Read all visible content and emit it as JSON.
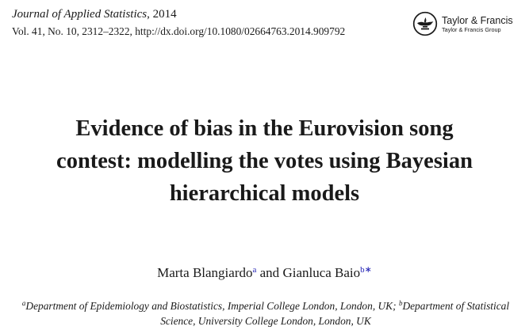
{
  "header": {
    "journal_name": "Journal of Applied Statistics",
    "journal_year": ", 2014",
    "citation": "Vol. 41, No. 10, 2312–2322, http://dx.doi.org/10.1080/02664763.2014.909792"
  },
  "publisher": {
    "name": "Taylor & Francis",
    "group": "Taylor & Francis Group",
    "logo_icon": "lamp-icon"
  },
  "title": {
    "line1": "Evidence of bias in the Eurovision song",
    "line2": "contest: modelling the votes using Bayesian",
    "line3": "hierarchical models"
  },
  "authors": {
    "author1": "Marta Blangiardo",
    "author1_sup": "a",
    "conjunction": " and ",
    "author2": "Gianluca Baio",
    "author2_sup": "b∗"
  },
  "affiliations": {
    "a_marker": "a",
    "a_text": "Department of Epidemiology and Biostatistics, Imperial College London, London, UK;",
    "b_marker": "b",
    "b_text": "Department of Statistical Science, University College London, London, UK"
  },
  "colors": {
    "text": "#1a1a1a",
    "link_superscript": "#2323b5"
  }
}
